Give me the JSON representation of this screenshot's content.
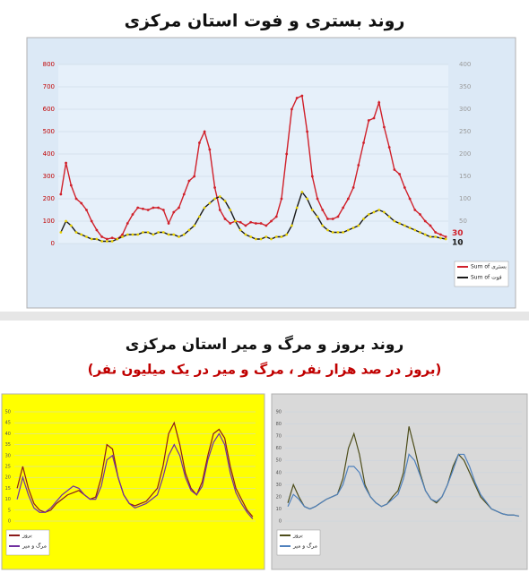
{
  "chart_data": [
    {
      "type": "line",
      "title": "روند بستری و فوت استان مرکزی",
      "ylim": [
        0,
        800
      ],
      "yticks": [
        0,
        100,
        200,
        300,
        400,
        500,
        600,
        700,
        800
      ],
      "y2lim": [
        0,
        400
      ],
      "y2ticks": [
        0,
        50,
        100,
        150,
        200,
        250,
        300,
        350,
        400
      ],
      "background": "#dce9f6",
      "tick_color": "#c00000",
      "series": [
        {
          "name": "Sum of بستری",
          "color": "#d0202a",
          "marker": "#d0202a",
          "values": [
            220,
            360,
            260,
            200,
            180,
            150,
            100,
            60,
            30,
            20,
            25,
            20,
            40,
            90,
            130,
            160,
            155,
            150,
            160,
            160,
            150,
            90,
            140,
            160,
            220,
            280,
            300,
            450,
            500,
            420,
            250,
            150,
            110,
            90,
            100,
            95,
            80,
            95,
            90,
            90,
            80,
            100,
            120,
            200,
            400,
            600,
            650,
            660,
            500,
            300,
            200,
            150,
            110,
            110,
            120,
            160,
            200,
            250,
            350,
            450,
            550,
            560,
            630,
            520,
            430,
            330,
            310,
            250,
            200,
            150,
            130,
            100,
            80,
            50,
            40,
            30
          ]
        },
        {
          "name": "Sum of فوت",
          "color": "#1a1a1a",
          "marker": "#e8d000",
          "axis": "y2",
          "values": [
            25,
            50,
            40,
            25,
            20,
            15,
            10,
            10,
            5,
            5,
            5,
            10,
            15,
            20,
            20,
            20,
            25,
            25,
            20,
            25,
            25,
            20,
            20,
            15,
            20,
            30,
            40,
            60,
            80,
            90,
            100,
            105,
            95,
            75,
            50,
            30,
            20,
            15,
            10,
            10,
            15,
            10,
            15,
            15,
            20,
            40,
            80,
            115,
            100,
            75,
            60,
            40,
            30,
            25,
            25,
            25,
            30,
            35,
            40,
            55,
            65,
            70,
            75,
            70,
            60,
            50,
            45,
            40,
            35,
            30,
            25,
            20,
            15,
            15,
            12,
            10
          ]
        }
      ]
    },
    {
      "type": "line",
      "ylim": [
        0,
        50
      ],
      "yticks": [
        0,
        5,
        10,
        15,
        20,
        25,
        30,
        35,
        40,
        45,
        50
      ],
      "background": "#ffff00",
      "tick_color": "#555555",
      "series": [
        {
          "name": "بروز",
          "color": "#8b1a1a",
          "values": [
            15,
            25,
            15,
            8,
            5,
            4,
            5,
            8,
            10,
            12,
            13,
            14,
            12,
            10,
            11,
            20,
            35,
            33,
            20,
            12,
            8,
            7,
            8,
            9,
            12,
            15,
            25,
            40,
            45,
            35,
            22,
            15,
            12,
            18,
            30,
            40,
            42,
            38,
            25,
            15,
            10,
            5,
            2
          ]
        },
        {
          "name": "مرگ و میر",
          "color": "#7030a0",
          "values": [
            10,
            20,
            12,
            6,
            4,
            4,
            6,
            9,
            12,
            14,
            16,
            15,
            12,
            10,
            10,
            16,
            28,
            30,
            20,
            12,
            8,
            6,
            7,
            8,
            10,
            12,
            20,
            30,
            35,
            30,
            20,
            14,
            12,
            16,
            28,
            36,
            40,
            35,
            22,
            13,
            8,
            4,
            1
          ]
        }
      ]
    },
    {
      "type": "line",
      "ylim": [
        0,
        90
      ],
      "yticks": [
        0,
        10,
        20,
        30,
        40,
        50,
        60,
        70,
        80,
        90
      ],
      "background": "#d9d9d9",
      "tick_color": "#555555",
      "series": [
        {
          "name": "بروز",
          "color": "#4d4d1a",
          "values": [
            15,
            30,
            20,
            12,
            10,
            12,
            15,
            18,
            20,
            22,
            35,
            60,
            72,
            55,
            30,
            20,
            15,
            12,
            14,
            20,
            25,
            40,
            78,
            60,
            40,
            25,
            18,
            15,
            20,
            30,
            45,
            55,
            50,
            40,
            30,
            20,
            15,
            10,
            8,
            6,
            5,
            5,
            4
          ]
        },
        {
          "name": "مرگ و میر",
          "color": "#4f81bd",
          "values": [
            12,
            22,
            18,
            12,
            10,
            12,
            15,
            18,
            20,
            22,
            30,
            45,
            45,
            40,
            28,
            20,
            15,
            12,
            14,
            18,
            22,
            35,
            55,
            50,
            38,
            25,
            18,
            16,
            20,
            30,
            42,
            55,
            55,
            45,
            32,
            22,
            16,
            10,
            8,
            6,
            5,
            5,
            4
          ]
        }
      ]
    }
  ],
  "section": {
    "title": "روند بروز و مرگ و میر استان مرکزی",
    "subtitle": "(بروز در صد هزار نفر ، مرگ و میر در یک میلیون نفر)"
  }
}
